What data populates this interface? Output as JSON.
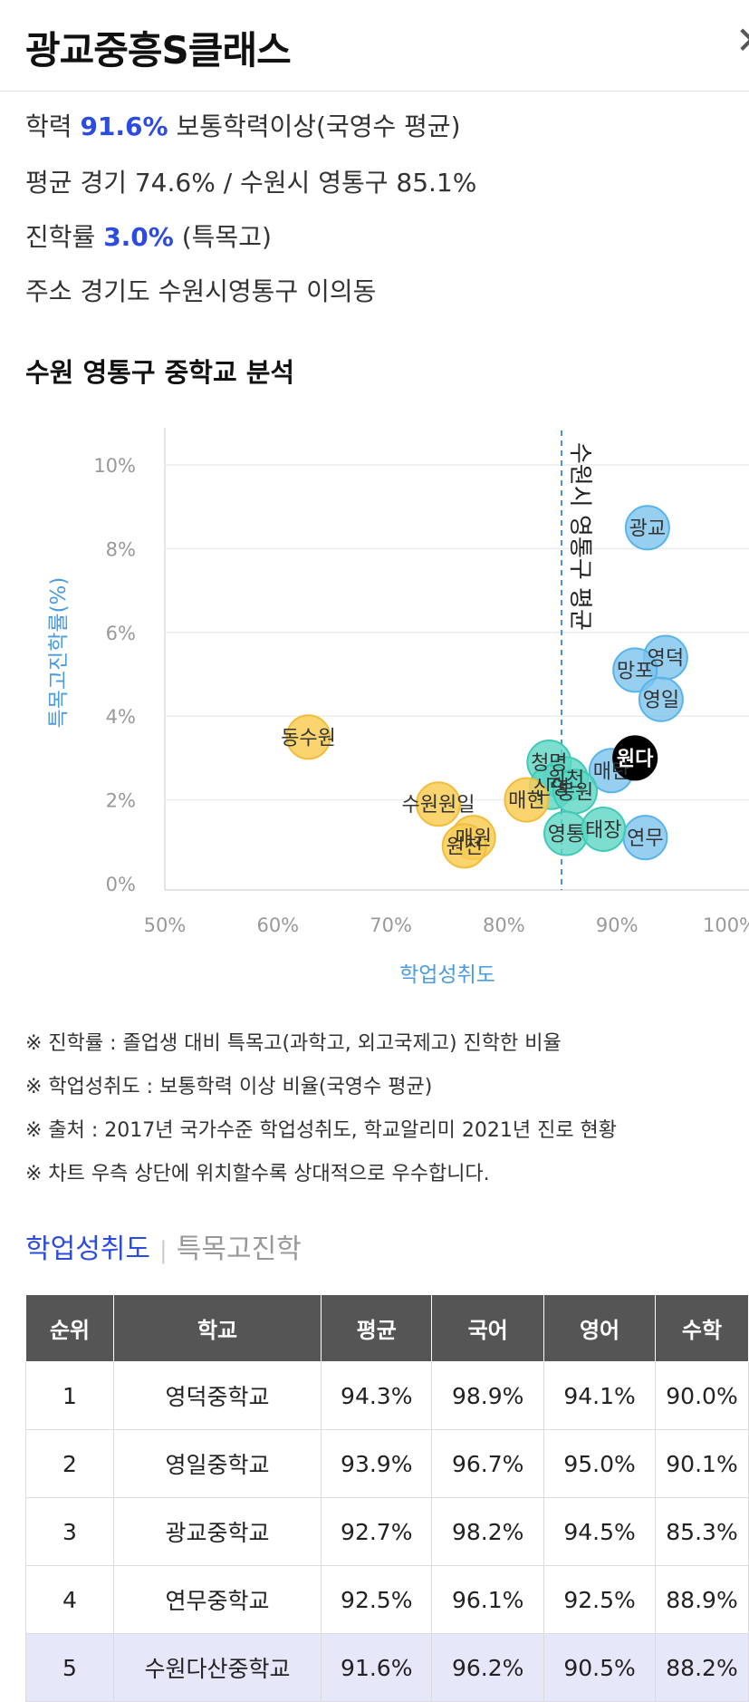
{
  "header": {
    "title": "광교중흥S클래스",
    "close_icon": "close-icon"
  },
  "info": {
    "achievement": {
      "label": "학력",
      "value": "91.6%",
      "desc": "보통학력이상(국영수 평균)"
    },
    "average": {
      "label": "평균",
      "text": "경기 74.6% / 수원시 영통구 85.1%"
    },
    "advance": {
      "label": "진학률",
      "value": "3.0%",
      "desc": "(특목고)"
    },
    "address": {
      "label": "주소",
      "text": "경기도 수원시영통구 이의동"
    }
  },
  "section_title": "수원 영통구 중학교 분석",
  "chart_data": {
    "type": "scatter",
    "xlabel": "학업성취도",
    "ylabel": "특목고진학률(%)",
    "xlim": [
      50,
      100
    ],
    "ylim": [
      0,
      10
    ],
    "x_ticks": [
      "50%",
      "60%",
      "70%",
      "80%",
      "90%",
      "100%"
    ],
    "y_ticks": [
      "0%",
      "2%",
      "4%",
      "6%",
      "8%",
      "10%"
    ],
    "reference_line": {
      "x": 85.1,
      "label": "수원시 영통구 평균"
    },
    "colors": {
      "above": "#8ccaf0",
      "middle": "#6fd6c6",
      "below": "#f7cc5c",
      "selected": "#000000"
    },
    "points": [
      {
        "label": "광교",
        "x": 92.7,
        "y": 8.5,
        "group": "above"
      },
      {
        "label": "영덕",
        "x": 94.3,
        "y": 5.4,
        "group": "above"
      },
      {
        "label": "망포",
        "x": 91.6,
        "y": 5.1,
        "group": "above"
      },
      {
        "label": "영일",
        "x": 93.9,
        "y": 4.4,
        "group": "above"
      },
      {
        "label": "매탄",
        "x": 89.5,
        "y": 2.7,
        "group": "above"
      },
      {
        "label": "연무",
        "x": 92.5,
        "y": 1.1,
        "group": "above"
      },
      {
        "label": "청명",
        "x": 84.0,
        "y": 2.9,
        "group": "middle"
      },
      {
        "label": "원천",
        "x": 85.5,
        "y": 2.5,
        "group": "middle"
      },
      {
        "label": "신영",
        "x": 84.2,
        "y": 2.3,
        "group": "middle"
      },
      {
        "label": "동원",
        "x": 86.3,
        "y": 2.2,
        "group": "middle"
      },
      {
        "label": "영통",
        "x": 85.5,
        "y": 1.2,
        "group": "middle"
      },
      {
        "label": "태장",
        "x": 88.8,
        "y": 1.3,
        "group": "middle"
      },
      {
        "label": "매현",
        "x": 82.0,
        "y": 2.0,
        "group": "below"
      },
      {
        "label": "동수원",
        "x": 62.7,
        "y": 3.5,
        "group": "below"
      },
      {
        "label": "수원원일",
        "x": 74.2,
        "y": 1.9,
        "group": "below"
      },
      {
        "label": "매원",
        "x": 77.3,
        "y": 1.1,
        "group": "below"
      },
      {
        "label": "원천",
        "x": 76.5,
        "y": 0.9,
        "group": "below"
      },
      {
        "label": "원다",
        "x": 91.6,
        "y": 3.0,
        "group": "selected"
      }
    ]
  },
  "notes": [
    "※ 진학률 : 졸업생 대비 특목고(과학고, 외고국제고) 진학한 비율",
    "※ 학업성취도 : 보통학력 이상 비율(국영수 평균)",
    "※ 출처 : 2017년 국가수준 학업성취도, 학교알리미 2021년 진로 현황",
    "※ 차트 우측 상단에 위치할수록 상대적으로 우수합니다."
  ],
  "tabs": {
    "active": "학업성취도",
    "inactive": "특목고진학"
  },
  "table": {
    "headers": [
      "순위",
      "학교",
      "평균",
      "국어",
      "영어",
      "수학"
    ],
    "rows": [
      [
        "1",
        "영덕중학교",
        "94.3%",
        "98.9%",
        "94.1%",
        "90.0%"
      ],
      [
        "2",
        "영일중학교",
        "93.9%",
        "96.7%",
        "95.0%",
        "90.1%"
      ],
      [
        "3",
        "광교중학교",
        "92.7%",
        "98.2%",
        "94.5%",
        "85.3%"
      ],
      [
        "4",
        "연무중학교",
        "92.5%",
        "96.1%",
        "92.5%",
        "88.9%"
      ],
      [
        "5",
        "수원다산중학교",
        "91.6%",
        "96.2%",
        "90.5%",
        "88.2%"
      ]
    ],
    "highlighted_row": 5
  }
}
